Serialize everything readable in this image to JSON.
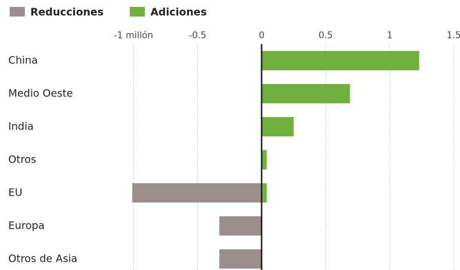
{
  "chart_data": {
    "type": "bar",
    "orientation": "horizontal",
    "categories": [
      "China",
      "Medio Oeste",
      "India",
      "Otros",
      "EU",
      "Europa",
      "Otros de Asia"
    ],
    "series": [
      {
        "name": "Reducciones",
        "color": "#9c8e8a",
        "values": [
          null,
          null,
          null,
          null,
          -1.01,
          -0.33,
          -0.33
        ]
      },
      {
        "name": "Adiciones",
        "color": "#6fb03f",
        "values": [
          1.23,
          0.69,
          0.25,
          0.04,
          0.04,
          null,
          null
        ]
      }
    ],
    "xlim": [
      -1.1,
      1.5
    ],
    "xticks": [
      {
        "value": -1,
        "label": "-1 millón"
      },
      -0.5,
      0,
      0.5,
      1,
      1.5
    ],
    "grid": true
  }
}
